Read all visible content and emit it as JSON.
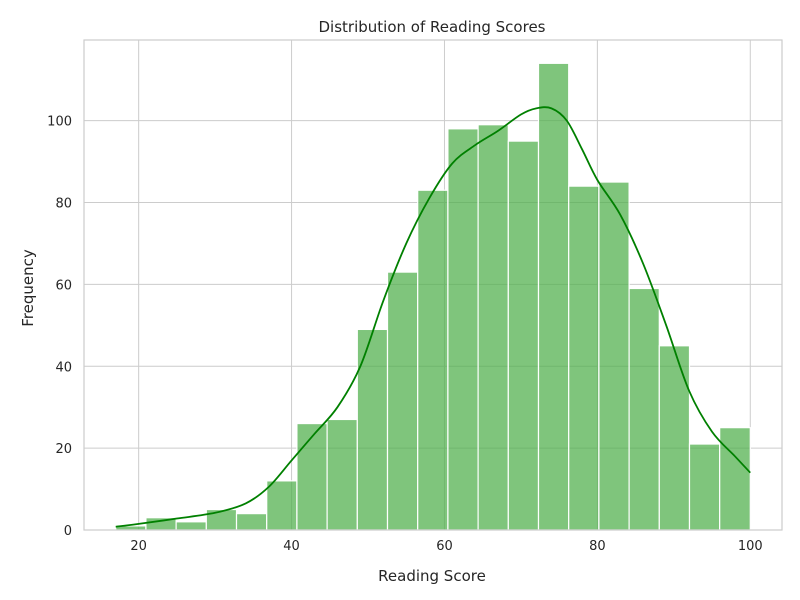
{
  "chart_data": {
    "type": "bar",
    "subtype": "histogram",
    "title": "Distribution of Reading Scores",
    "xlabel": "Reading Score",
    "ylabel": "Frequency",
    "xlim": [
      12.85,
      104.15
    ],
    "ylim": [
      0,
      119.7
    ],
    "xticks": [
      20,
      40,
      60,
      80,
      100
    ],
    "yticks": [
      0,
      20,
      40,
      60,
      80,
      100
    ],
    "grid": true,
    "bar_color": "#4daf4a",
    "kde_color": "#008000",
    "bins": [
      {
        "x0": 17,
        "x1": 20.95,
        "count": 1
      },
      {
        "x0": 20.95,
        "x1": 24.9,
        "count": 3
      },
      {
        "x0": 24.9,
        "x1": 28.85,
        "count": 2
      },
      {
        "x0": 28.85,
        "x1": 32.8,
        "count": 5
      },
      {
        "x0": 32.8,
        "x1": 36.75,
        "count": 4
      },
      {
        "x0": 36.75,
        "x1": 40.7,
        "count": 12
      },
      {
        "x0": 40.7,
        "x1": 44.65,
        "count": 26
      },
      {
        "x0": 44.65,
        "x1": 48.6,
        "count": 27
      },
      {
        "x0": 48.6,
        "x1": 52.55,
        "count": 49
      },
      {
        "x0": 52.55,
        "x1": 56.5,
        "count": 63
      },
      {
        "x0": 56.5,
        "x1": 60.45,
        "count": 83
      },
      {
        "x0": 60.45,
        "x1": 64.4,
        "count": 98
      },
      {
        "x0": 64.4,
        "x1": 68.35,
        "count": 99
      },
      {
        "x0": 68.35,
        "x1": 72.3,
        "count": 95
      },
      {
        "x0": 72.3,
        "x1": 76.25,
        "count": 114
      },
      {
        "x0": 76.25,
        "x1": 80.2,
        "count": 84
      },
      {
        "x0": 80.2,
        "x1": 84.15,
        "count": 85
      },
      {
        "x0": 84.15,
        "x1": 88.1,
        "count": 59
      },
      {
        "x0": 88.1,
        "x1": 92.05,
        "count": 45
      },
      {
        "x0": 92.05,
        "x1": 96,
        "count": 21
      },
      {
        "x0": 96,
        "x1": 100,
        "count": 25
      }
    ],
    "kde": {
      "x": [
        17,
        20,
        25,
        30,
        34,
        37,
        40,
        43,
        46,
        49,
        52,
        55,
        58,
        61,
        64,
        67,
        70,
        72,
        74,
        76,
        78,
        80,
        83,
        86,
        89,
        92,
        95,
        98,
        100
      ],
      "y": [
        0.8,
        1.5,
        2.8,
        4.2,
        6.5,
        10.5,
        17,
        23.5,
        30,
        40,
        56,
        70,
        81,
        89.5,
        94,
        97.5,
        101.5,
        103,
        103,
        100,
        93,
        85.5,
        77,
        65,
        50,
        34,
        24,
        18,
        14
      ]
    }
  }
}
